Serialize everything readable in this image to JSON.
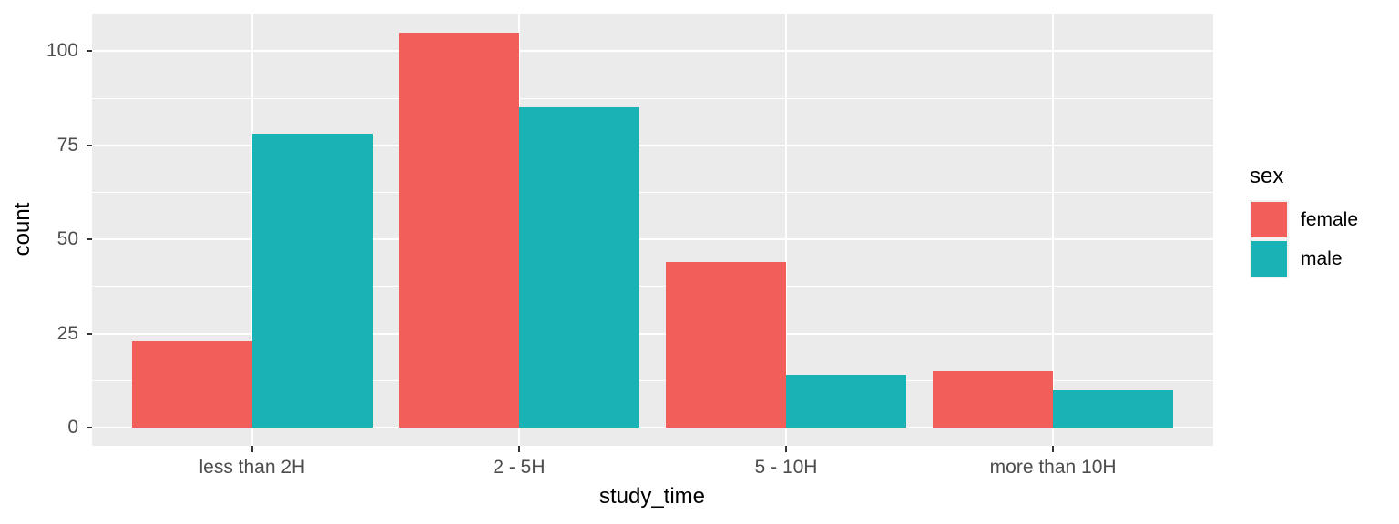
{
  "chart_data": {
    "type": "bar",
    "mode": "grouped",
    "title": "",
    "xlabel": "study_time",
    "ylabel": "count",
    "legend_title": "sex",
    "legend_position": "right",
    "categories": [
      "less than 2H",
      "2 - 5H",
      "5 - 10H",
      "more than 10H"
    ],
    "series": [
      {
        "name": "female",
        "color": "#F25F5B",
        "values": [
          23,
          105,
          44,
          15
        ]
      },
      {
        "name": "male",
        "color": "#19B2B5",
        "values": [
          78,
          85,
          14,
          10
        ]
      }
    ],
    "ylim": [
      0,
      110
    ],
    "y_major_ticks": [
      0,
      25,
      50,
      75,
      100
    ],
    "y_minor_ticks": [
      12.5,
      37.5,
      62.5,
      87.5
    ],
    "grid": true
  },
  "style": {
    "panel_background": "#EBEBEB",
    "gridline_color": "#FFFFFF",
    "tick_label_color": "#4D4D4D",
    "axis_title_color": "#000000",
    "tick_mark_color": "#333333",
    "legend_key_background": "#F2F2F2"
  }
}
